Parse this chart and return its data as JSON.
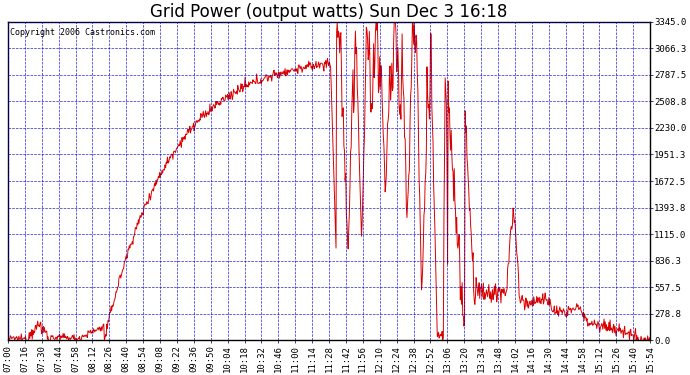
{
  "title": "Grid Power (output watts) Sun Dec 3 16:18",
  "copyright": "Copyright 2006 Castronics.com",
  "background_color": "#ffffff",
  "plot_bg_color": "#ffffff",
  "line_color": "#dd0000",
  "grid_color": "#0000bb",
  "border_color": "#000000",
  "ymin": 0.0,
  "ymax": 3345.0,
  "yticks": [
    0.0,
    278.8,
    557.5,
    836.3,
    1115.0,
    1393.8,
    1672.5,
    1951.3,
    2230.0,
    2508.8,
    2787.5,
    3066.3,
    3345.0
  ],
  "xtick_labels": [
    "07:00",
    "07:16",
    "07:30",
    "07:44",
    "07:58",
    "08:12",
    "08:26",
    "08:40",
    "08:54",
    "09:08",
    "09:22",
    "09:36",
    "09:50",
    "10:04",
    "10:18",
    "10:32",
    "10:46",
    "11:00",
    "11:14",
    "11:28",
    "11:42",
    "11:56",
    "12:10",
    "12:24",
    "12:38",
    "12:52",
    "13:06",
    "13:20",
    "13:34",
    "13:48",
    "14:02",
    "14:16",
    "14:30",
    "14:44",
    "14:58",
    "15:12",
    "15:26",
    "15:40",
    "15:54"
  ],
  "title_fontsize": 12,
  "tick_fontsize": 6.5,
  "copyright_fontsize": 6
}
